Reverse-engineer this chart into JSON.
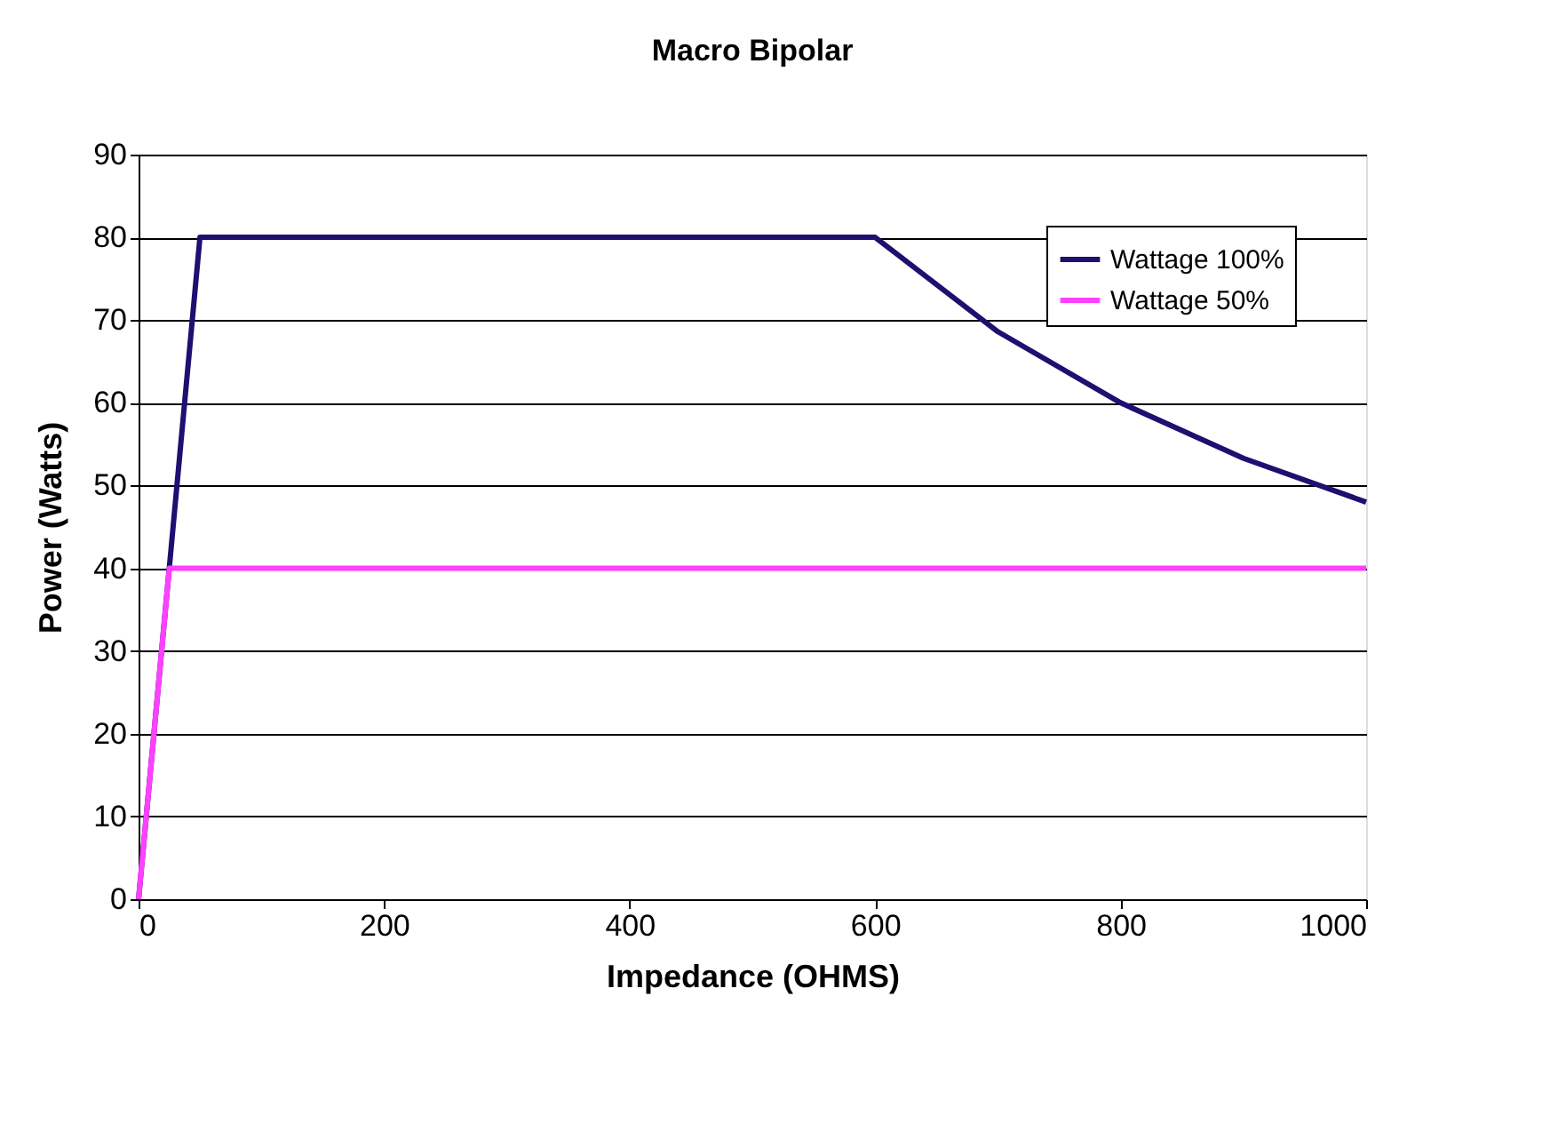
{
  "chart_data": {
    "type": "line",
    "title": "Macro Bipolar",
    "xlabel": "Impedance (OHMS)",
    "ylabel": "Power (Watts)",
    "series": [
      {
        "name": "Wattage 100%",
        "color": "#1c1070",
        "x": [
          0,
          50,
          600,
          700,
          800,
          900,
          1000
        ],
        "values": [
          0,
          80,
          80,
          68.6,
          60,
          53.3,
          48
        ]
      },
      {
        "name": "Wattage 50%",
        "color": "#ff40ff",
        "x": [
          0,
          25,
          1000
        ],
        "values": [
          0,
          40,
          40
        ]
      }
    ],
    "xlim": [
      0,
      1000
    ],
    "xticks": [
      0,
      200,
      400,
      600,
      800,
      1000
    ],
    "ylim": [
      0,
      90
    ],
    "yticks": [
      0,
      10,
      20,
      30,
      40,
      50,
      60,
      70,
      80,
      90
    ],
    "grid": "y",
    "legend": "top right",
    "marker": "none",
    "line_style": "solid"
  }
}
